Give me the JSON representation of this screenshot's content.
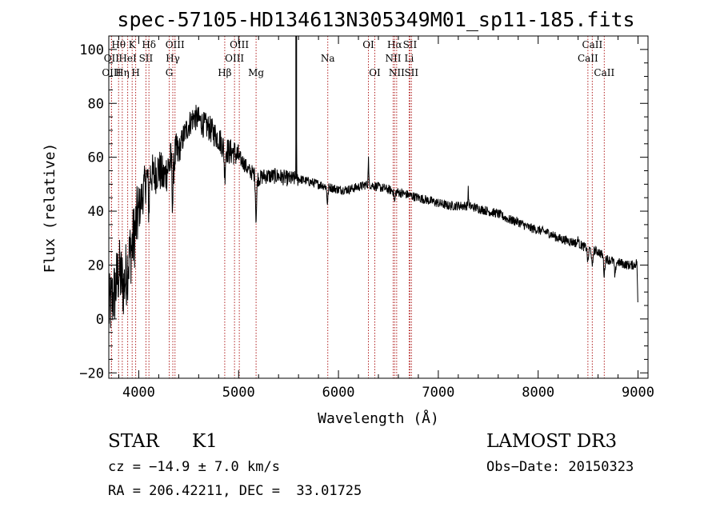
{
  "chart_data": {
    "type": "line",
    "title": "spec-57105-HD134613N305349M01_sp11-185.fits",
    "xlabel": "Wavelength (Å)",
    "ylabel": "Flux (relative)",
    "xlim": [
      3700,
      9100
    ],
    "ylim": [
      -22,
      105
    ],
    "xticks": [
      4000,
      5000,
      6000,
      7000,
      8000,
      9000
    ],
    "xtick_labels": [
      "4000",
      "5000",
      "6000",
      "7000",
      "8000",
      "9000"
    ],
    "yticks": [
      -20,
      0,
      20,
      40,
      60,
      80,
      100
    ],
    "ytick_labels": [
      "−20",
      "0",
      "20",
      "40",
      "60",
      "80",
      "100"
    ],
    "continuum_points": [
      [
        3700,
        3
      ],
      [
        3760,
        10
      ],
      [
        3800,
        18
      ],
      [
        3850,
        12
      ],
      [
        3900,
        22
      ],
      [
        3950,
        30
      ],
      [
        4000,
        40
      ],
      [
        4050,
        48
      ],
      [
        4100,
        55
      ],
      [
        4150,
        53
      ],
      [
        4200,
        56
      ],
      [
        4250,
        52
      ],
      [
        4300,
        57
      ],
      [
        4350,
        60
      ],
      [
        4400,
        62
      ],
      [
        4450,
        68
      ],
      [
        4500,
        72
      ],
      [
        4550,
        75
      ],
      [
        4600,
        74
      ],
      [
        4650,
        72
      ],
      [
        4700,
        71
      ],
      [
        4750,
        69
      ],
      [
        4800,
        67
      ],
      [
        4850,
        64
      ],
      [
        4900,
        62
      ],
      [
        4950,
        62
      ],
      [
        5000,
        60
      ],
      [
        5050,
        58
      ],
      [
        5100,
        55
      ],
      [
        5150,
        54
      ],
      [
        5200,
        52
      ],
      [
        5250,
        53
      ],
      [
        5300,
        53
      ],
      [
        5400,
        53
      ],
      [
        5500,
        52
      ],
      [
        5600,
        52
      ],
      [
        5700,
        51
      ],
      [
        5800,
        50
      ],
      [
        5900,
        49
      ],
      [
        6000,
        48
      ],
      [
        6100,
        48
      ],
      [
        6200,
        49
      ],
      [
        6300,
        50
      ],
      [
        6400,
        49
      ],
      [
        6500,
        48
      ],
      [
        6600,
        47
      ],
      [
        6700,
        46
      ],
      [
        6800,
        45
      ],
      [
        6900,
        44
      ],
      [
        7000,
        43
      ],
      [
        7100,
        42
      ],
      [
        7200,
        42
      ],
      [
        7300,
        42
      ],
      [
        7400,
        41
      ],
      [
        7500,
        40
      ],
      [
        7600,
        39
      ],
      [
        7700,
        37
      ],
      [
        7800,
        36
      ],
      [
        7900,
        34
      ],
      [
        8000,
        33
      ],
      [
        8100,
        32
      ],
      [
        8200,
        30
      ],
      [
        8300,
        29
      ],
      [
        8400,
        28
      ],
      [
        8500,
        26
      ],
      [
        8600,
        25
      ],
      [
        8700,
        22
      ],
      [
        8800,
        21
      ],
      [
        8900,
        20
      ],
      [
        8960,
        20
      ],
      [
        8990,
        21
      ],
      [
        9000,
        1
      ]
    ],
    "absorption_features": [
      {
        "x": 4101,
        "depth": 14
      },
      {
        "x": 4340,
        "depth": 16
      },
      {
        "x": 4861,
        "depth": 10
      },
      {
        "x": 5175,
        "depth": 16
      },
      {
        "x": 5890,
        "depth": 6
      },
      {
        "x": 6563,
        "depth": 4
      },
      {
        "x": 8498,
        "depth": 5
      },
      {
        "x": 8542,
        "depth": 7
      },
      {
        "x": 8662,
        "depth": 7
      },
      {
        "x": 8770,
        "depth": 6
      }
    ],
    "emission_features": [
      {
        "x": 5577,
        "height": 16
      },
      {
        "x": 6300,
        "height": 10
      },
      {
        "x": 7300,
        "height": 7
      },
      {
        "x": 8400,
        "height": 3
      }
    ],
    "marker_lines": [
      5577
    ],
    "spectral_lines": [
      {
        "label": "Hθ",
        "x": 3798,
        "row": 0
      },
      {
        "label": "OII",
        "x": 3727,
        "row": 1
      },
      {
        "label": "OIII",
        "x": 3727,
        "row": 2
      },
      {
        "label": "K",
        "x": 3934,
        "row": 0
      },
      {
        "label": "HeI",
        "x": 3889,
        "row": 1
      },
      {
        "label": "Hη",
        "x": 3835,
        "row": 2
      },
      {
        "label": "SII",
        "x": 4072,
        "row": 1
      },
      {
        "label": "H",
        "x": 3969,
        "row": 2
      },
      {
        "label": "Hδ",
        "x": 4102,
        "row": 0
      },
      {
        "label": "OIII",
        "x": 4363,
        "row": 0
      },
      {
        "label": "Hγ",
        "x": 4341,
        "row": 1
      },
      {
        "label": "G",
        "x": 4305,
        "row": 2
      },
      {
        "label": "OIII",
        "x": 5007,
        "row": 0
      },
      {
        "label": "OIII",
        "x": 4959,
        "row": 1
      },
      {
        "label": "Hβ",
        "x": 4861,
        "row": 2
      },
      {
        "label": "Mg",
        "x": 5175,
        "row": 2
      },
      {
        "label": "Na",
        "x": 5893,
        "row": 1
      },
      {
        "label": "OI",
        "x": 6300,
        "row": 0
      },
      {
        "label": "OI",
        "x": 6364,
        "row": 2
      },
      {
        "label": "Hα",
        "x": 6563,
        "row": 0
      },
      {
        "label": "NII",
        "x": 6548,
        "row": 1
      },
      {
        "label": "NII",
        "x": 6583,
        "row": 2
      },
      {
        "label": "SII",
        "x": 6716,
        "row": 0
      },
      {
        "label": "Li",
        "x": 6708,
        "row": 1
      },
      {
        "label": "SII",
        "x": 6731,
        "row": 2
      },
      {
        "label": "CaII",
        "x": 8542,
        "row": 0
      },
      {
        "label": "CaII",
        "x": 8498,
        "row": 1
      },
      {
        "label": "CaII",
        "x": 8662,
        "row": 2
      }
    ]
  },
  "info": {
    "class": "STAR",
    "subclass": "K1",
    "survey": "LAMOST DR3",
    "cz": "cz = −14.9 ± 7.0 km/s",
    "obs_date": "Obs−Date: 20150323",
    "coords": "RA = 206.42211, DEC =  33.01725"
  },
  "colors": {
    "line_marker": "#b22222",
    "spectrum": "#000000",
    "background": "#ffffff"
  }
}
